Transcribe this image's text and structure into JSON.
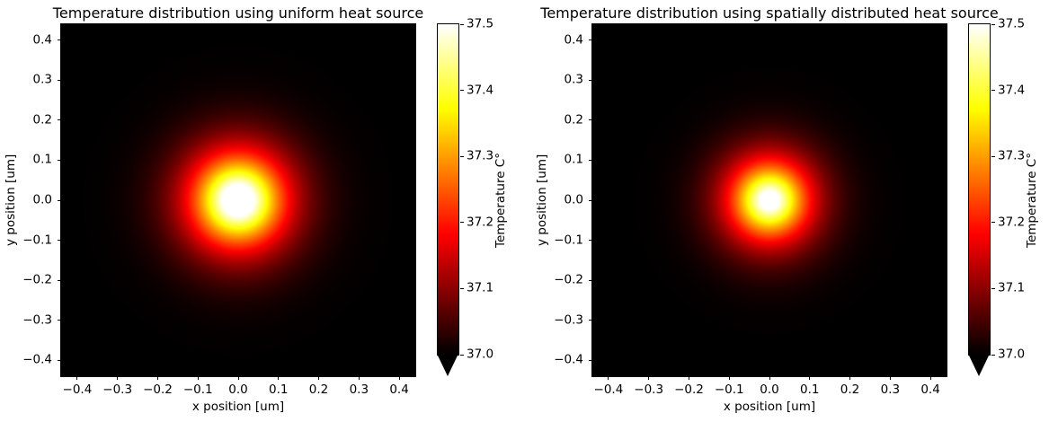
{
  "figure": {
    "background_color": "#ffffff",
    "text_color": "#000000"
  },
  "chart_data": [
    {
      "type": "heatmap",
      "title": "Temperature distribution using uniform heat source",
      "xlabel": "x position [um]",
      "ylabel": "y position [um]",
      "xlim": [
        -0.44,
        0.44
      ],
      "ylim": [
        -0.44,
        0.44
      ],
      "xticks": [
        -0.4,
        -0.3,
        -0.2,
        -0.1,
        0.0,
        0.1,
        0.2,
        0.3,
        0.4
      ],
      "yticks": [
        -0.4,
        -0.3,
        -0.2,
        -0.1,
        0.0,
        0.1,
        0.2,
        0.3,
        0.4
      ],
      "colormap": "hot",
      "grid": false,
      "colorbar": {
        "label": "Temperature C°",
        "vmin": 37.0,
        "vmax": 37.5,
        "ticks": [
          37.0,
          37.1,
          37.2,
          37.3,
          37.4,
          37.5
        ],
        "extend": "min"
      },
      "field": {
        "model": "radial-peak",
        "center": [
          0.0,
          0.0
        ],
        "base_temp": 37.0,
        "peak_amplitude": 0.62,
        "core_radius": 0.112,
        "falloff_exponent": 1.5
      }
    },
    {
      "type": "heatmap",
      "title": "Temperature distribution using spatially distributed heat source",
      "xlabel": "x position [um]",
      "ylabel": "y position [um]",
      "xlim": [
        -0.44,
        0.44
      ],
      "ylim": [
        -0.44,
        0.44
      ],
      "xticks": [
        -0.4,
        -0.3,
        -0.2,
        -0.1,
        0.0,
        0.1,
        0.2,
        0.3,
        0.4
      ],
      "yticks": [
        -0.4,
        -0.3,
        -0.2,
        -0.1,
        0.0,
        0.1,
        0.2,
        0.3,
        0.4
      ],
      "colormap": "hot",
      "grid": false,
      "colorbar": {
        "label": "Temperature C°",
        "vmin": 37.0,
        "vmax": 37.5,
        "ticks": [
          37.0,
          37.1,
          37.2,
          37.3,
          37.4,
          37.5
        ],
        "extend": "min"
      },
      "field": {
        "model": "radial-peak",
        "center": [
          0.0,
          0.0
        ],
        "base_temp": 37.0,
        "peak_amplitude": 0.56,
        "core_radius": 0.098,
        "falloff_exponent": 1.5
      }
    }
  ]
}
